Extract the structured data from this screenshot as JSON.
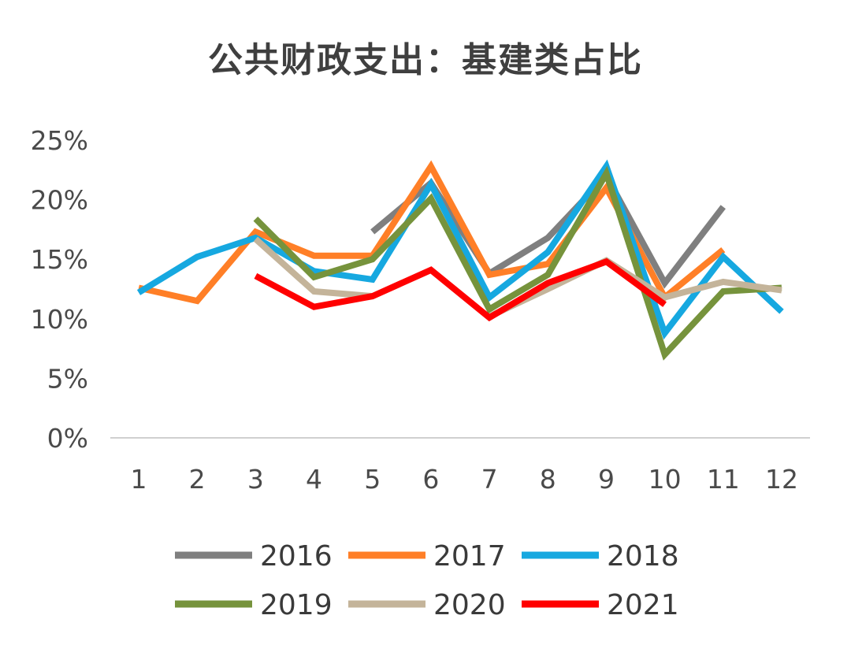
{
  "chart_data": {
    "type": "line",
    "title": "公共财政支出：基建类占比",
    "xlabel": "",
    "ylabel": "",
    "x": [
      1,
      2,
      3,
      4,
      5,
      6,
      7,
      8,
      9,
      10,
      11,
      12
    ],
    "x_tick_labels": [
      "1",
      "2",
      "3",
      "4",
      "5",
      "6",
      "7",
      "8",
      "9",
      "10",
      "11",
      "12"
    ],
    "ylim": [
      0,
      25
    ],
    "y_ticks": [
      0,
      5,
      10,
      15,
      20,
      25
    ],
    "y_tick_labels": [
      "0%",
      "5%",
      "10%",
      "15%",
      "20%",
      "25%"
    ],
    "grid": false,
    "legend_position": "bottom",
    "series": [
      {
        "name": "2016",
        "color": "#7f7f7f",
        "values": [
          null,
          null,
          null,
          null,
          17.3,
          21.4,
          13.8,
          16.8,
          22.0,
          13.0,
          19.4,
          null
        ]
      },
      {
        "name": "2017",
        "color": "#ff7f27",
        "values": [
          12.6,
          11.5,
          17.3,
          15.3,
          15.3,
          22.8,
          13.7,
          14.6,
          21.0,
          11.8,
          15.8,
          null
        ]
      },
      {
        "name": "2018",
        "color": "#16a8e0",
        "values": [
          12.2,
          15.2,
          16.8,
          14.0,
          13.3,
          21.3,
          11.8,
          15.6,
          22.8,
          8.8,
          15.2,
          10.6
        ]
      },
      {
        "name": "2019",
        "color": "#76933c",
        "values": [
          null,
          null,
          18.4,
          13.5,
          15.0,
          20.1,
          10.8,
          13.7,
          22.2,
          7.0,
          12.3,
          12.6
        ]
      },
      {
        "name": "2020",
        "color": "#c4b49a",
        "values": [
          null,
          null,
          16.7,
          12.3,
          11.9,
          null,
          10.2,
          12.5,
          14.9,
          11.8,
          13.1,
          12.4
        ]
      },
      {
        "name": "2021",
        "color": "#ff0000",
        "values": [
          null,
          null,
          13.6,
          11.0,
          11.9,
          14.1,
          10.1,
          13.0,
          14.8,
          11.2,
          null,
          null
        ]
      }
    ]
  }
}
